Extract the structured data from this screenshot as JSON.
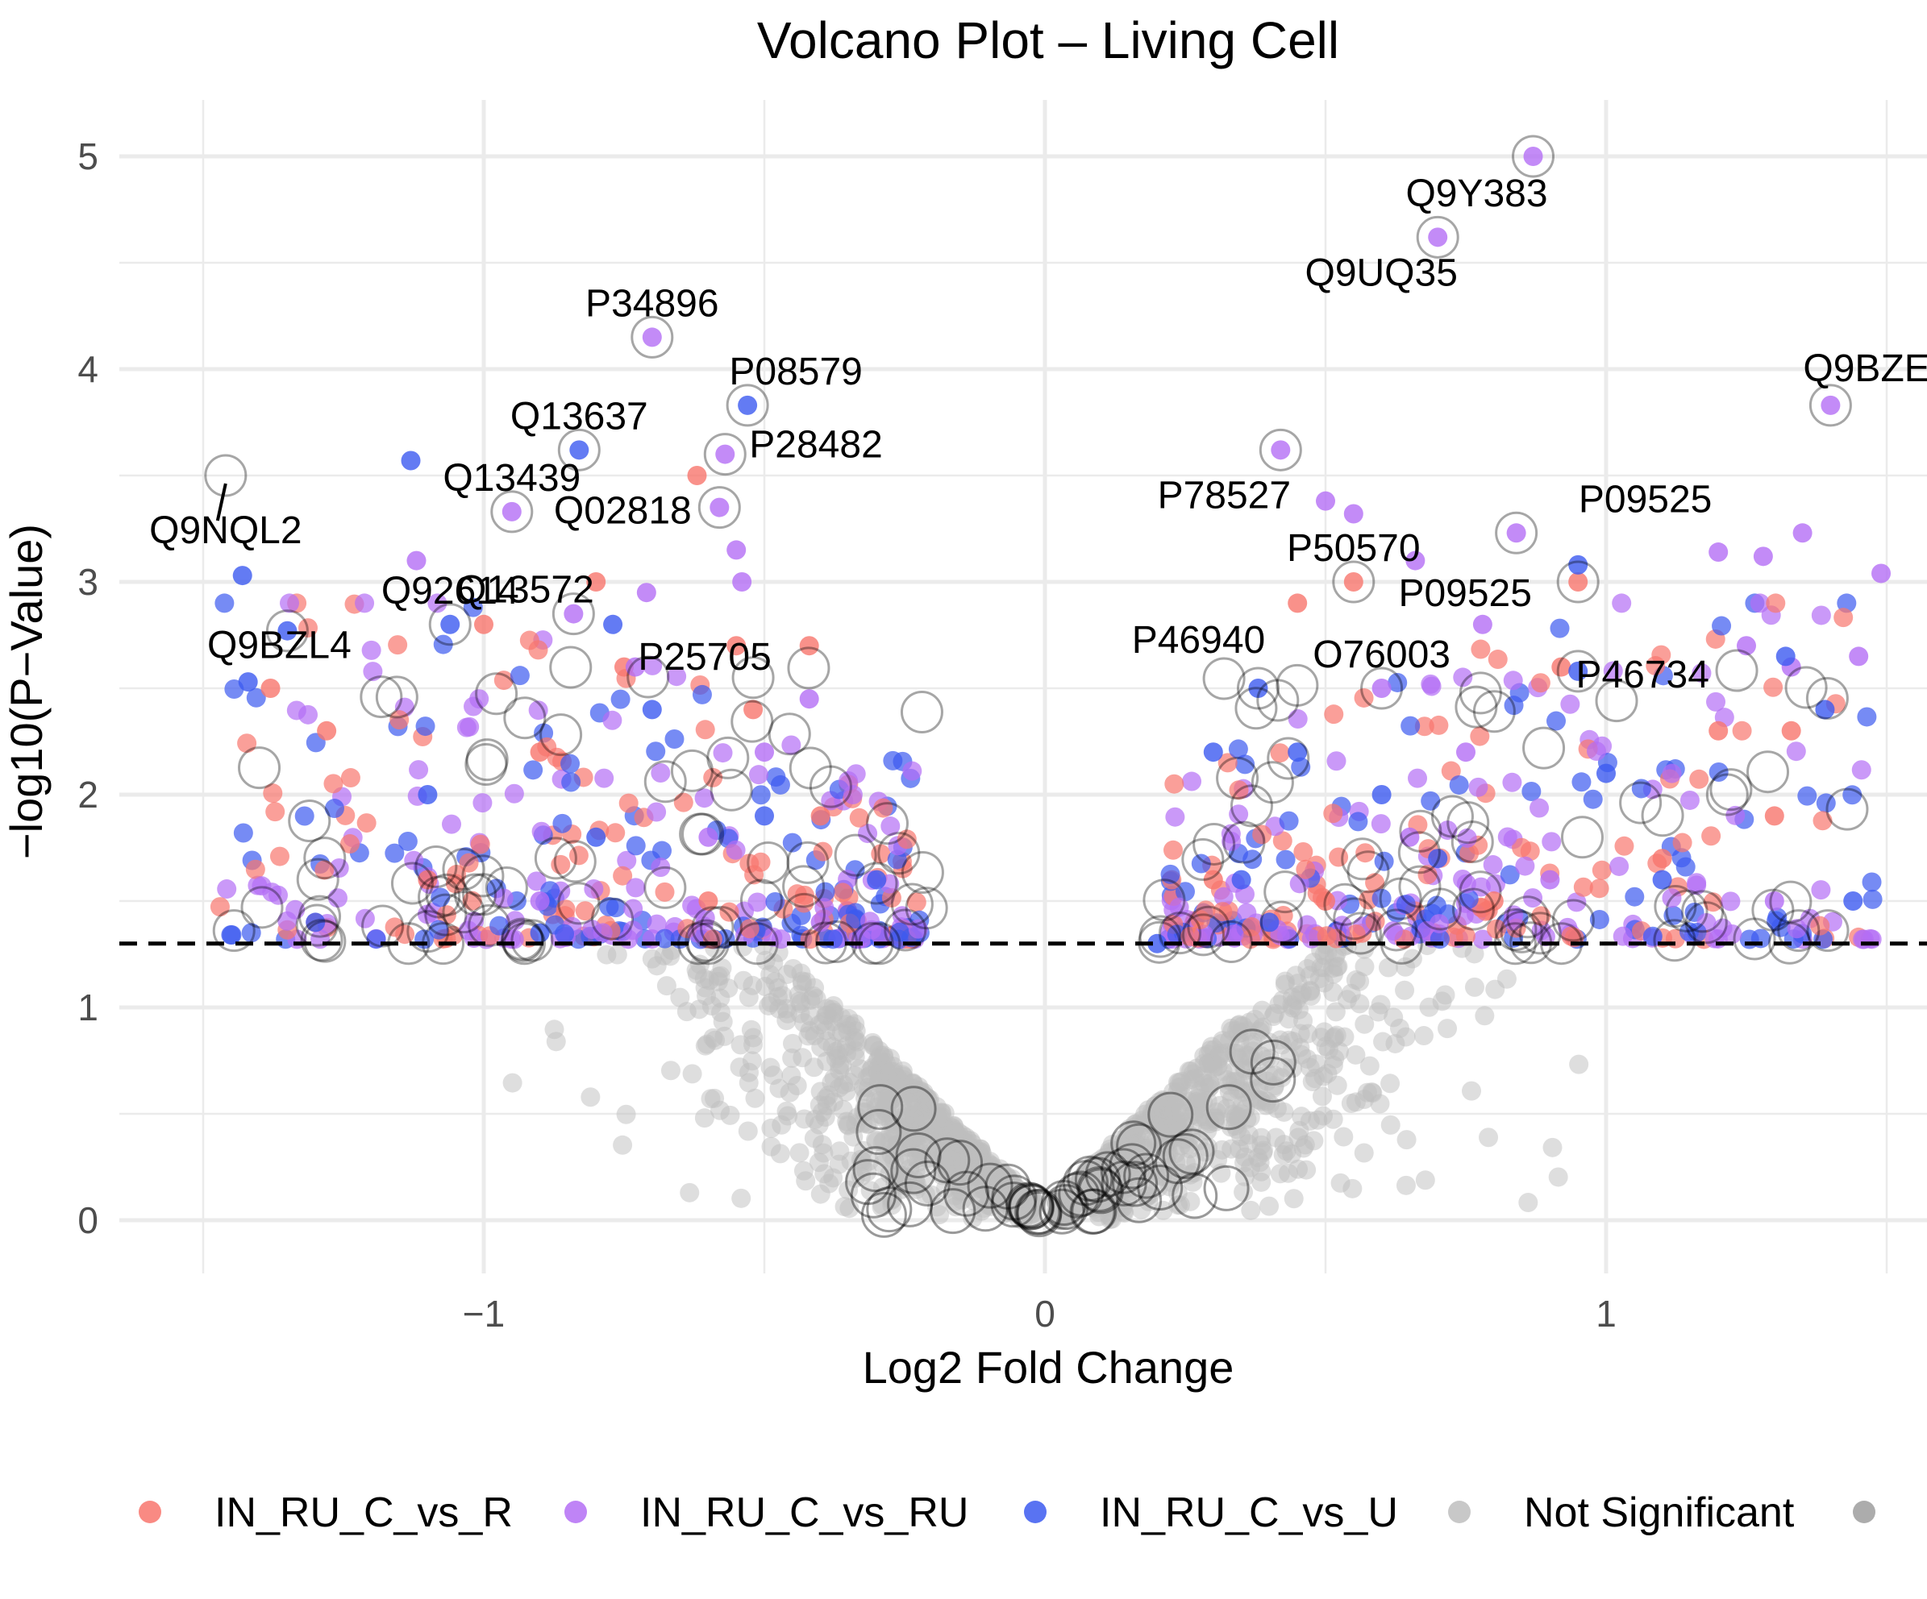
{
  "chart_data": {
    "type": "scatter",
    "title": "Volcano Plot – Living Cell",
    "xlabel": "Log2 Fold Change",
    "ylabel": "−log10(P−Value)",
    "xlim": [
      -1.5,
      1.5
    ],
    "ylim": [
      -0.25,
      5.25
    ],
    "x_ticks": [
      -1,
      0,
      1
    ],
    "x_tick_labels": [
      "−1",
      "0",
      "1"
    ],
    "y_ticks": [
      0,
      1,
      2,
      3,
      4,
      5
    ],
    "y_tick_labels": [
      "0",
      "1",
      "2",
      "3",
      "4",
      "5"
    ],
    "threshold": 1.3,
    "grid": true,
    "legend_position": "bottom",
    "colors": {
      "IN_RU_C_vs_R": "#F8766D",
      "IN_RU_C_vs_RU": "#B46EF5",
      "IN_RU_C_vs_U": "#3C5AF0",
      "not_significant": "#BEBEBE",
      "extra": "#9E9E9E"
    },
    "legend": [
      {
        "label": "IN_RU_C_vs_R",
        "color": "#F8766D"
      },
      {
        "label": "IN_RU_C_vs_RU",
        "color": "#B46EF5"
      },
      {
        "label": "IN_RU_C_vs_U",
        "color": "#3C5AF0"
      },
      {
        "label": "Not Significant",
        "color": "#BEBEBE"
      },
      {
        "label": "",
        "color": "#9E9E9E"
      }
    ],
    "series": [
      {
        "name": "IN_RU_C_vs_R",
        "color": "#F8766D",
        "points": [
          [
            -1.38,
            2.5
          ],
          [
            -1.28,
            2.3
          ],
          [
            -0.9,
            2.2
          ],
          [
            -0.8,
            3.0
          ],
          [
            -0.75,
            2.6
          ],
          [
            -0.62,
            3.5
          ],
          [
            -0.55,
            2.7
          ],
          [
            -0.52,
            2.4
          ],
          [
            -0.42,
            2.7
          ],
          [
            -1.0,
            2.8
          ],
          [
            0.45,
            2.9
          ],
          [
            0.55,
            3.0
          ],
          [
            0.95,
            3.0
          ],
          [
            0.92,
            2.6
          ],
          [
            1.2,
            2.3
          ],
          [
            1.33,
            2.3
          ],
          [
            -1.1,
            1.6
          ],
          [
            -0.6,
            1.5
          ],
          [
            -0.4,
            1.9
          ],
          [
            0.3,
            1.6
          ],
          [
            0.5,
            1.5
          ],
          [
            0.8,
            1.5
          ],
          [
            1.1,
            1.7
          ],
          [
            1.3,
            1.9
          ]
        ]
      },
      {
        "name": "IN_RU_C_vs_RU",
        "color": "#B46EF5",
        "points": [
          [
            0.87,
            5.0
          ],
          [
            0.7,
            4.62
          ],
          [
            -0.7,
            4.15
          ],
          [
            1.4,
            3.83
          ],
          [
            0.42,
            3.62
          ],
          [
            -0.57,
            3.6
          ],
          [
            0.5,
            3.38
          ],
          [
            0.55,
            3.32
          ],
          [
            1.35,
            3.23
          ],
          [
            1.28,
            3.12
          ],
          [
            -0.95,
            3.33
          ],
          [
            -0.58,
            3.35
          ],
          [
            -1.12,
            3.1
          ],
          [
            -0.55,
            3.15
          ],
          [
            -0.54,
            3.0
          ],
          [
            -0.71,
            2.95
          ],
          [
            -0.84,
            2.85
          ],
          [
            0.84,
            3.23
          ],
          [
            1.2,
            3.14
          ],
          [
            1.49,
            3.04
          ],
          [
            1.45,
            2.65
          ],
          [
            1.33,
            2.6
          ],
          [
            1.25,
            2.7
          ],
          [
            0.78,
            2.8
          ],
          [
            0.66,
            3.1
          ],
          [
            -0.73,
            2.6
          ],
          [
            -0.42,
            2.45
          ],
          [
            -0.5,
            2.2
          ],
          [
            0.6,
            2.5
          ],
          [
            0.75,
            2.2
          ],
          [
            0.65,
            1.8
          ],
          [
            -0.6,
            1.8
          ],
          [
            -0.4,
            1.4
          ],
          [
            0.9,
            1.6
          ],
          [
            1.3,
            1.5
          ],
          [
            -0.9,
            1.5
          ]
        ]
      },
      {
        "name": "IN_RU_C_vs_U",
        "color": "#3C5AF0",
        "points": [
          [
            -0.53,
            3.83
          ],
          [
            -0.83,
            3.62
          ],
          [
            -1.13,
            3.57
          ],
          [
            -1.43,
            3.03
          ],
          [
            -1.06,
            2.8
          ],
          [
            -0.77,
            2.8
          ],
          [
            -1.42,
            2.53
          ],
          [
            -1.35,
            2.77
          ],
          [
            0.38,
            2.5
          ],
          [
            0.95,
            3.08
          ],
          [
            0.95,
            2.58
          ],
          [
            1.32,
            2.65
          ],
          [
            1.39,
            2.4
          ],
          [
            -0.7,
            2.4
          ],
          [
            0.3,
            2.2
          ],
          [
            0.45,
            2.2
          ],
          [
            0.6,
            2.0
          ],
          [
            1.0,
            2.1
          ],
          [
            -1.1,
            2.0
          ],
          [
            -0.8,
            1.8
          ],
          [
            -0.5,
            1.9
          ],
          [
            -0.3,
            1.6
          ],
          [
            0.35,
            1.6
          ],
          [
            0.7,
            1.7
          ],
          [
            1.1,
            1.6
          ],
          [
            1.44,
            1.5
          ],
          [
            -1.3,
            1.4
          ],
          [
            -0.9,
            1.35
          ],
          [
            0.4,
            1.4
          ],
          [
            0.2,
            1.3
          ]
        ]
      }
    ],
    "labels": [
      {
        "text": "Q9Y383",
        "x": 0.87,
        "y": 5.0
      },
      {
        "text": "Q9UQ35",
        "x": 0.7,
        "y": 4.62
      },
      {
        "text": "P34896",
        "x": -0.7,
        "y": 4.15
      },
      {
        "text": "P08579",
        "x": -0.53,
        "y": 3.83
      },
      {
        "text": "Q9BZE",
        "x": 1.4,
        "y": 3.83
      },
      {
        "text": "Q13637",
        "x": -0.83,
        "y": 3.62
      },
      {
        "text": "P28482",
        "x": -0.57,
        "y": 3.6
      },
      {
        "text": "P78527",
        "x": 0.42,
        "y": 3.62
      },
      {
        "text": "Q13439",
        "x": -0.95,
        "y": 3.33
      },
      {
        "text": "Q02818",
        "x": -0.58,
        "y": 3.35
      },
      {
        "text": "Q9NQL2",
        "x": -1.46,
        "y": 3.5
      },
      {
        "text": "P09525",
        "x": 0.84,
        "y": 3.23
      },
      {
        "text": "P50570",
        "x": 0.55,
        "y": 3.0
      },
      {
        "text": "P09525",
        "x": 0.95,
        "y": 3.0
      },
      {
        "text": "Q9BZL4",
        "x": -1.35,
        "y": 2.77
      },
      {
        "text": "Q13572",
        "x": -0.84,
        "y": 2.85
      },
      {
        "text": "P46940",
        "x": 0.38,
        "y": 2.5
      },
      {
        "text": "O76003",
        "x": 0.6,
        "y": 2.5
      },
      {
        "text": "P46734",
        "x": 0.95,
        "y": 2.58
      },
      {
        "text": "Q92614",
        "x": -1.06,
        "y": 2.8
      },
      {
        "text": "P25705",
        "x": -0.52,
        "y": 2.55
      }
    ]
  }
}
